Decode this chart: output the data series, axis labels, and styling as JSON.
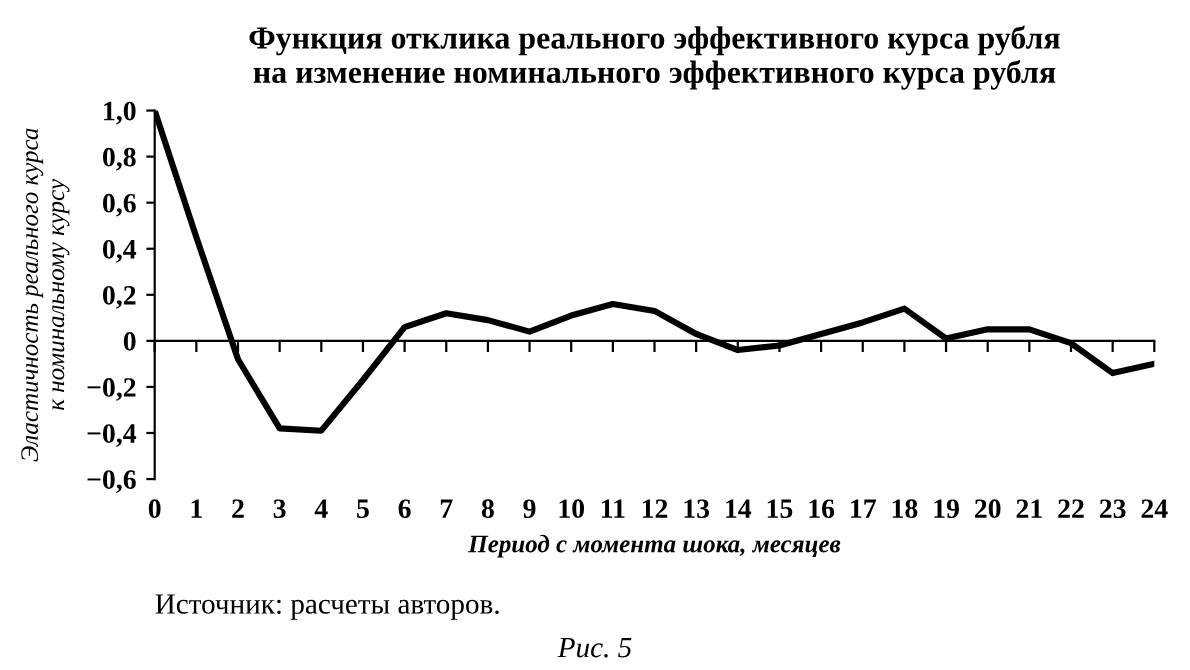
{
  "chart_data": {
    "type": "line",
    "title": "Функция отклика реального эффективного курса рубля\nна изменение номинального эффективного курса рубля",
    "xlabel": "Период с момента шока, месяцев",
    "ylabel": "Эластичность реального курса\nк номинальному курсу",
    "x": [
      0,
      1,
      2,
      3,
      4,
      5,
      6,
      7,
      8,
      9,
      10,
      11,
      12,
      13,
      14,
      15,
      16,
      17,
      18,
      19,
      20,
      21,
      22,
      23,
      24
    ],
    "series": [
      {
        "color": "#000000",
        "values": [
          1.0,
          0.45,
          -0.08,
          -0.38,
          -0.39,
          -0.17,
          0.06,
          0.12,
          0.09,
          0.04,
          0.11,
          0.16,
          0.13,
          0.03,
          -0.04,
          -0.02,
          0.03,
          0.08,
          0.14,
          0.01,
          0.05,
          0.05,
          -0.01,
          -0.14,
          -0.1
        ]
      }
    ],
    "xlim": [
      0,
      24
    ],
    "xticks": [
      0,
      1,
      2,
      3,
      4,
      5,
      6,
      7,
      8,
      9,
      10,
      11,
      12,
      13,
      14,
      15,
      16,
      17,
      18,
      19,
      20,
      21,
      22,
      23,
      24
    ],
    "ylim": [
      -0.6,
      1.0
    ],
    "yticks": [
      {
        "value": -0.6,
        "label": "−0,6"
      },
      {
        "value": -0.4,
        "label": "−0,4"
      },
      {
        "value": -0.2,
        "label": "−0,2"
      },
      {
        "value": 0,
        "label": "0"
      },
      {
        "value": 0.2,
        "label": "0,2"
      },
      {
        "value": 0.4,
        "label": "0,4"
      },
      {
        "value": 0.6,
        "label": "0,6"
      },
      {
        "value": 0.8,
        "label": "0,8"
      },
      {
        "value": 1.0,
        "label": "1,0"
      }
    ],
    "legend": false,
    "marker": "none",
    "line_style": "solid",
    "annotations": [
      "Источник: расчеты авторов.",
      "Рис. 5"
    ]
  }
}
